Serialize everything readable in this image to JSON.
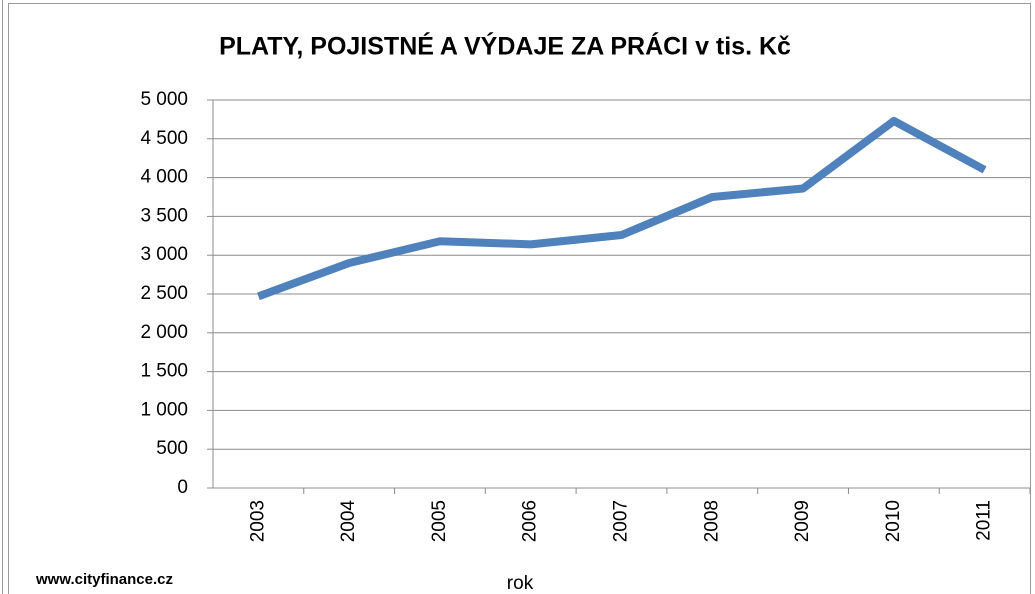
{
  "chart_data": {
    "type": "line",
    "title": "PLATY, POJISTNÉ A VÝDAJE ZA PRÁCI v tis. Kč",
    "x_label": "rok",
    "source": "www.cityfinance.cz",
    "categories": [
      "2003",
      "2004",
      "2005",
      "2006",
      "2007",
      "2008",
      "2009",
      "2010",
      "2011"
    ],
    "series": [
      {
        "name": "PLATY, POJISTNÉ A VÝDAJE ZA PRÁCI",
        "color": "#4f81bd",
        "values": [
          2470,
          2900,
          3180,
          3140,
          3260,
          3750,
          3860,
          4730,
          4100
        ]
      }
    ],
    "ylim": [
      0,
      5000
    ],
    "yticks": [
      0,
      500,
      {
        "value": 1000,
        "label": "1 000"
      },
      {
        "value": 1500,
        "label": "1 500"
      },
      {
        "value": 2000,
        "label": "2 000"
      },
      {
        "value": 2500,
        "label": "2 500"
      },
      {
        "value": 3000,
        "label": "3 000"
      },
      {
        "value": 3500,
        "label": "3 500"
      },
      {
        "value": 4000,
        "label": "4 000"
      },
      {
        "value": 4500,
        "label": "4 500"
      },
      {
        "value": 5000,
        "label": "5 000"
      }
    ],
    "grid": true
  }
}
